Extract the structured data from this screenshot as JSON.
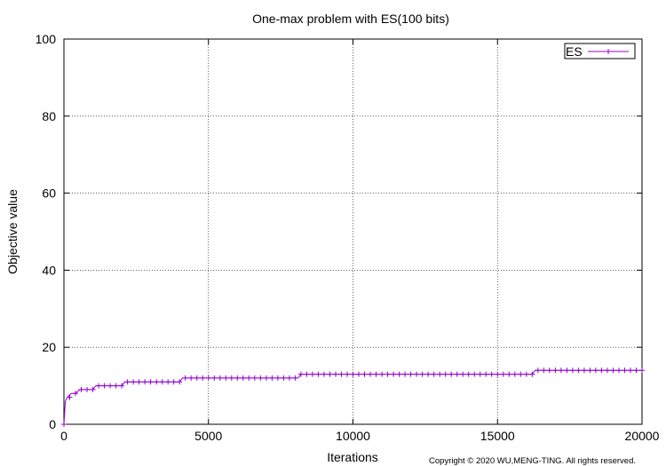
{
  "chart_data": {
    "type": "line",
    "title": "One-max problem with ES(100 bits)",
    "xlabel": "Iterations",
    "ylabel": "Objective value",
    "xlim": [
      0,
      20000
    ],
    "ylim": [
      0,
      100
    ],
    "xticks": [
      0,
      5000,
      10000,
      15000,
      20000
    ],
    "yticks": [
      0,
      20,
      40,
      60,
      80,
      100
    ],
    "xtick_labels": [
      "0",
      "5000",
      "10000",
      "15000",
      "20000"
    ],
    "ytick_labels": [
      "0",
      "20",
      "40",
      "60",
      "80",
      "100"
    ],
    "grid": true,
    "legend_position": "top-right",
    "series": [
      {
        "name": "ES",
        "color": "#9400d3",
        "marker": "plus",
        "x": [
          0,
          50,
          120,
          250,
          400,
          550,
          700,
          1000,
          1100,
          2000,
          2100,
          4000,
          4100,
          8100,
          8200,
          16200,
          16300,
          20000
        ],
        "y": [
          0,
          6,
          7,
          8,
          8,
          9,
          9,
          9,
          10,
          10,
          11,
          11,
          12,
          12,
          13,
          13,
          14,
          14
        ]
      }
    ]
  },
  "footer": {
    "copyright": "Copyright © 2020 WU,MENG-TING. All rights reserved."
  }
}
